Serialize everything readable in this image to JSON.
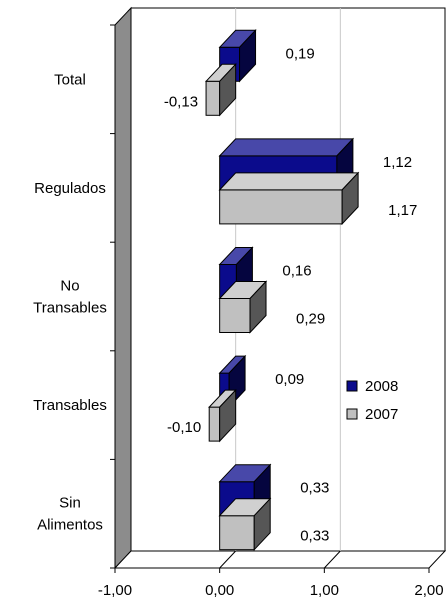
{
  "chart_data": {
    "type": "bar",
    "orientation": "horizontal",
    "style": "3d-clustered",
    "categories": [
      "Total",
      "Regulados",
      "No Transables",
      "Transables",
      "Sin Alimentos"
    ],
    "category_lines": [
      [
        "Total"
      ],
      [
        "Regulados"
      ],
      [
        "No",
        "Transables"
      ],
      [
        "Transables"
      ],
      [
        "Sin",
        "Alimentos"
      ]
    ],
    "series": [
      {
        "name": "2008",
        "values": [
          0.19,
          1.12,
          0.16,
          0.09,
          0.33
        ],
        "value_labels": [
          "0,19",
          "1,12",
          "0,16",
          "0,09",
          "0,33"
        ],
        "color": "#0b0b8c"
      },
      {
        "name": "2007",
        "values": [
          -0.13,
          1.17,
          0.29,
          -0.1,
          0.33
        ],
        "value_labels": [
          "-0,13",
          "1,17",
          "0,29",
          "-0,10",
          "0,33"
        ],
        "color": "#c0c0c0"
      }
    ],
    "xlim": [
      -1.0,
      2.0
    ],
    "xticks": [
      -1.0,
      0.0,
      1.0,
      2.0
    ],
    "xtick_labels": [
      "-1,00",
      "0,00",
      "1,00",
      "2,00"
    ],
    "grid": "vertical",
    "legend": "right-lower",
    "title": "",
    "xlabel": "",
    "ylabel": ""
  }
}
